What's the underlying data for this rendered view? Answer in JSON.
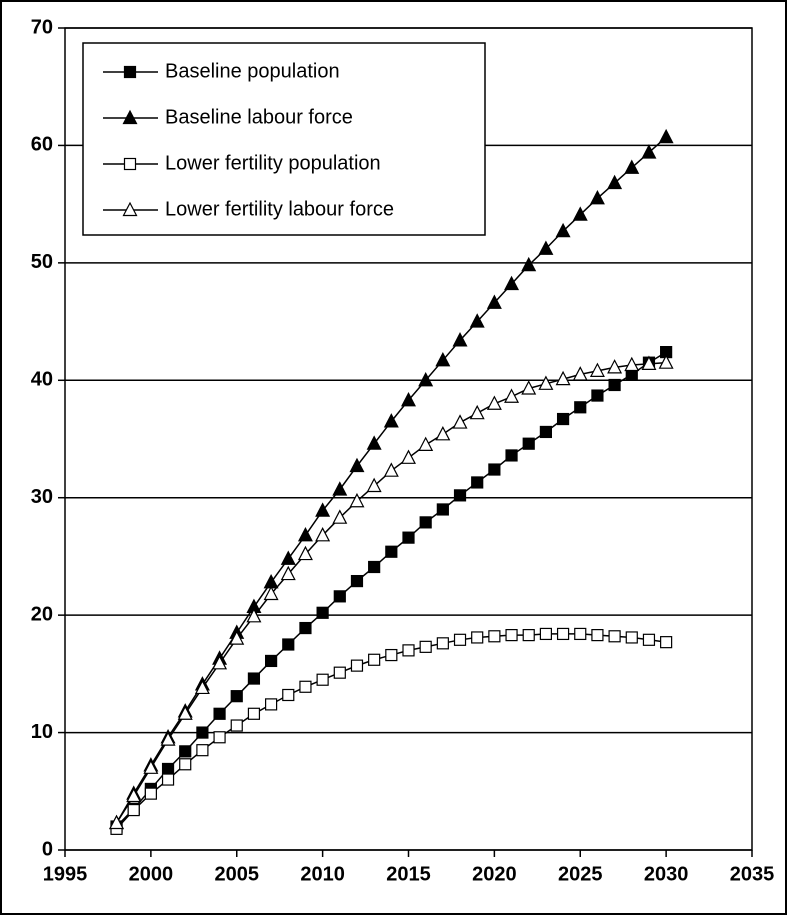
{
  "chart_data": {
    "type": "line",
    "x": [
      1998,
      1999,
      2000,
      2001,
      2002,
      2003,
      2004,
      2005,
      2006,
      2007,
      2008,
      2009,
      2010,
      2011,
      2012,
      2013,
      2014,
      2015,
      2016,
      2017,
      2018,
      2019,
      2020,
      2021,
      2022,
      2023,
      2024,
      2025,
      2026,
      2027,
      2028,
      2029,
      2030
    ],
    "series": [
      {
        "name": "Baseline population",
        "color": "#000000",
        "marker": "square",
        "marker_fill": "#000000",
        "values": [
          2.0,
          3.5,
          5.2,
          6.9,
          8.4,
          10.0,
          11.6,
          13.1,
          14.6,
          16.1,
          17.5,
          18.9,
          20.2,
          21.6,
          22.9,
          24.1,
          25.4,
          26.6,
          27.9,
          29.0,
          30.2,
          31.3,
          32.4,
          33.6,
          34.6,
          35.6,
          36.7,
          37.7,
          38.7,
          39.6,
          40.5,
          41.5,
          42.4
        ]
      },
      {
        "name": "Baseline labour force",
        "color": "#000000",
        "marker": "triangle",
        "marker_fill": "#000000",
        "values": [
          2.3,
          4.8,
          7.2,
          9.6,
          11.8,
          14.1,
          16.3,
          18.5,
          20.7,
          22.8,
          24.8,
          26.8,
          28.9,
          30.7,
          32.7,
          34.6,
          36.5,
          38.3,
          40.0,
          41.7,
          43.4,
          45.0,
          46.6,
          48.2,
          49.8,
          51.2,
          52.7,
          54.1,
          55.5,
          56.8,
          58.1,
          59.4,
          60.7
        ]
      },
      {
        "name": "Lower fertility population",
        "color": "#000000",
        "marker": "square",
        "marker_fill": "#ffffff",
        "values": [
          1.8,
          3.4,
          4.8,
          6.0,
          7.3,
          8.5,
          9.6,
          10.6,
          11.6,
          12.4,
          13.2,
          13.9,
          14.5,
          15.1,
          15.7,
          16.2,
          16.6,
          17.0,
          17.3,
          17.6,
          17.9,
          18.1,
          18.2,
          18.3,
          18.3,
          18.4,
          18.4,
          18.4,
          18.3,
          18.2,
          18.1,
          17.9,
          17.7
        ]
      },
      {
        "name": "Lower fertility labour force",
        "color": "#000000",
        "marker": "triangle",
        "marker_fill": "#ffffff",
        "values": [
          2.3,
          4.6,
          7.0,
          9.4,
          11.6,
          13.8,
          15.9,
          18.0,
          19.9,
          21.8,
          23.5,
          25.2,
          26.8,
          28.3,
          29.7,
          31.0,
          32.3,
          33.4,
          34.5,
          35.4,
          36.4,
          37.2,
          38.0,
          38.6,
          39.3,
          39.7,
          40.1,
          40.5,
          40.8,
          41.1,
          41.3,
          41.4,
          41.5
        ]
      }
    ],
    "xlim": [
      1995,
      2035
    ],
    "xticks": [
      1995,
      2000,
      2005,
      2010,
      2015,
      2020,
      2025,
      2030,
      2035
    ],
    "ylim": [
      0,
      70
    ],
    "yticks": [
      0,
      10,
      20,
      30,
      40,
      50,
      60,
      70
    ],
    "grid": true,
    "legend": "upper left"
  }
}
